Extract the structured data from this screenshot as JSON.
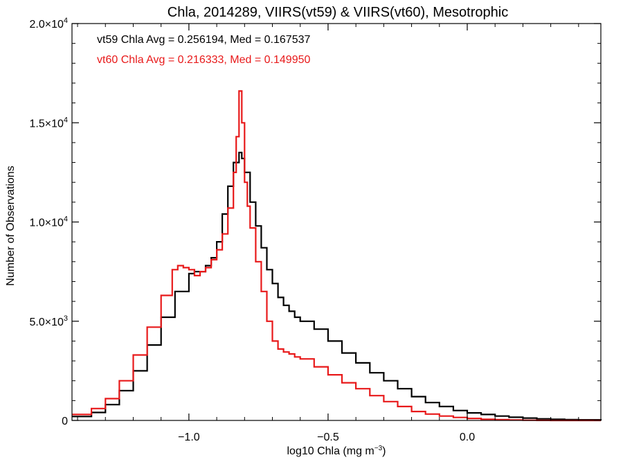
{
  "chart_data": {
    "type": "line",
    "step": true,
    "title": "Chla, 2014289, VIIRS(vt59) & VIIRS(vt60), Mesotrophic",
    "xlabel_main": "log10 Chla (mg m",
    "xlabel_sup": "−3",
    "xlabel_close": ")",
    "ylabel": "Number of Observations",
    "xlim": [
      -1.42,
      0.48
    ],
    "ylim": [
      0,
      20000
    ],
    "x_ticks": [
      {
        "value": -1.0,
        "label": "−1.0"
      },
      {
        "value": -0.5,
        "label": "−0.5"
      },
      {
        "value": 0.0,
        "label": "0.0"
      }
    ],
    "y_ticks": [
      {
        "value": 0,
        "label": "0",
        "sup": ""
      },
      {
        "value": 5000,
        "label": "5.0×10",
        "sup": "3"
      },
      {
        "value": 10000,
        "label": "1.0×10",
        "sup": "4"
      },
      {
        "value": 15000,
        "label": "1.5×10",
        "sup": "4"
      },
      {
        "value": 20000,
        "label": "2.0×10",
        "sup": "4"
      }
    ],
    "grid": false,
    "annotations": [
      {
        "text": "vt59 Chla Avg = 0.256194, Med = 0.167537",
        "color": "#000000"
      },
      {
        "text": "vt60 Chla Avg = 0.216333, Med = 0.149950",
        "color": "#e8191a"
      }
    ],
    "series": [
      {
        "color": "#000000",
        "x": [
          -1.42,
          -1.35,
          -1.3,
          -1.25,
          -1.2,
          -1.15,
          -1.1,
          -1.05,
          -1.0,
          -0.98,
          -0.96,
          -0.94,
          -0.92,
          -0.9,
          -0.88,
          -0.86,
          -0.84,
          -0.82,
          -0.81,
          -0.8,
          -0.78,
          -0.76,
          -0.74,
          -0.72,
          -0.7,
          -0.68,
          -0.66,
          -0.64,
          -0.62,
          -0.6,
          -0.55,
          -0.5,
          -0.45,
          -0.4,
          -0.35,
          -0.3,
          -0.25,
          -0.2,
          -0.15,
          -0.1,
          -0.05,
          0.0,
          0.05,
          0.1,
          0.15,
          0.2,
          0.25,
          0.3,
          0.35,
          0.4,
          0.48
        ],
        "y": [
          200,
          400,
          800,
          1500,
          2500,
          3800,
          5200,
          6500,
          7400,
          7500,
          7500,
          7800,
          8200,
          9000,
          10400,
          11800,
          13000,
          13500,
          13200,
          12500,
          11000,
          9800,
          8700,
          7600,
          6900,
          6200,
          5800,
          5500,
          5200,
          5000,
          4600,
          4000,
          3400,
          2900,
          2400,
          2000,
          1600,
          1200,
          900,
          700,
          500,
          380,
          300,
          220,
          160,
          120,
          80,
          60,
          40,
          30,
          0
        ]
      },
      {
        "color": "#e8191a",
        "x": [
          -1.42,
          -1.35,
          -1.3,
          -1.25,
          -1.2,
          -1.15,
          -1.1,
          -1.06,
          -1.04,
          -1.02,
          -1.0,
          -0.98,
          -0.96,
          -0.94,
          -0.92,
          -0.9,
          -0.88,
          -0.86,
          -0.84,
          -0.83,
          -0.82,
          -0.81,
          -0.8,
          -0.79,
          -0.78,
          -0.76,
          -0.74,
          -0.72,
          -0.7,
          -0.68,
          -0.66,
          -0.64,
          -0.62,
          -0.6,
          -0.55,
          -0.5,
          -0.45,
          -0.4,
          -0.35,
          -0.3,
          -0.25,
          -0.2,
          -0.15,
          -0.1,
          -0.05,
          0.0,
          0.05,
          0.1,
          0.15,
          0.2,
          0.25,
          0.3,
          0.35,
          0.4,
          0.48
        ],
        "y": [
          300,
          600,
          1100,
          2000,
          3300,
          4700,
          6300,
          7600,
          7800,
          7700,
          7600,
          7300,
          7500,
          7700,
          8100,
          8600,
          9400,
          10700,
          12500,
          14300,
          16600,
          15000,
          12000,
          10800,
          9700,
          8000,
          6500,
          5000,
          4000,
          3600,
          3450,
          3350,
          3200,
          3100,
          2700,
          2300,
          1900,
          1600,
          1250,
          950,
          700,
          450,
          320,
          220,
          150,
          100,
          60,
          40,
          20,
          10,
          5,
          0,
          0,
          0,
          0
        ]
      }
    ]
  }
}
